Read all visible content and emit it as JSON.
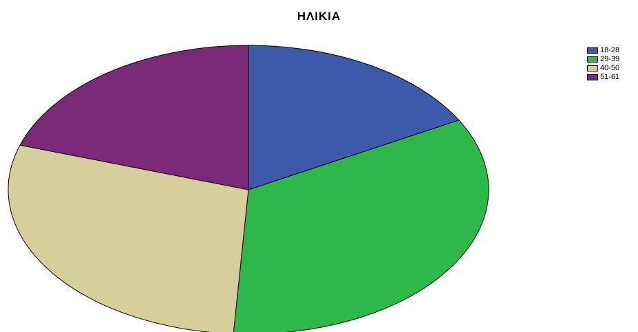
{
  "chart_data": {
    "type": "pie",
    "title": "ΗΛΙΚΙΑ",
    "categories": [
      "18-28",
      "29-39",
      "40-50",
      "51-61"
    ],
    "values": [
      17.0,
      34.0,
      29.0,
      20.0
    ],
    "colors": [
      "#3c5aab",
      "#2fb84a",
      "#d6ce9b",
      "#7b2a7a"
    ],
    "legend_position": "top-right"
  }
}
